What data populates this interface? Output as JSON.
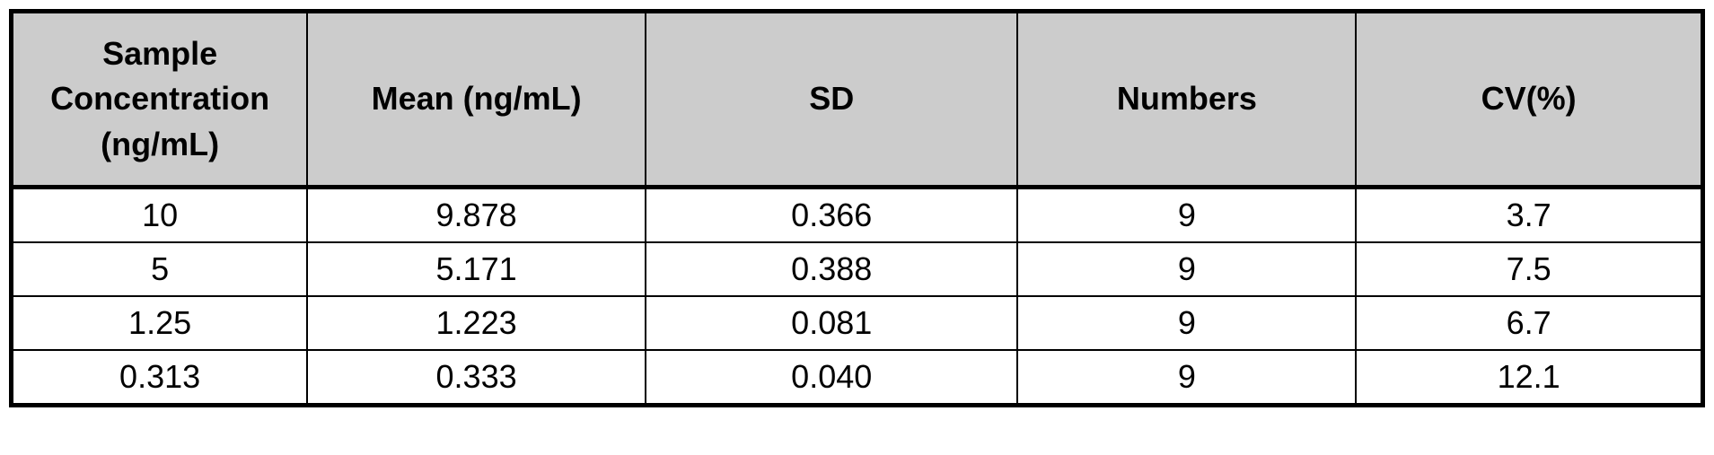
{
  "table": {
    "type": "table",
    "columns": [
      {
        "label": "Sample Concentration (ng/mL)",
        "width_pct": 17.5
      },
      {
        "label": "Mean (ng/mL)",
        "width_pct": 20
      },
      {
        "label": "SD",
        "width_pct": 22
      },
      {
        "label": "Numbers",
        "width_pct": 20
      },
      {
        "label": "CV(%)",
        "width_pct": 20.5
      }
    ],
    "rows": [
      [
        "10",
        "9.878",
        "0.366",
        "9",
        "3.7"
      ],
      [
        "5",
        "5.171",
        "0.388",
        "9",
        "7.5"
      ],
      [
        "1.25",
        "1.223",
        "0.081",
        "9",
        "6.7"
      ],
      [
        "0.313",
        "0.333",
        "0.040",
        "9",
        "12.1"
      ]
    ],
    "styling": {
      "header_background": "#cccccc",
      "cell_background": "#ffffff",
      "border_color": "#000000",
      "outer_border_width": 5,
      "inner_border_width": 2,
      "header_fontsize": 36,
      "cell_fontsize": 36,
      "font_family": "Arial",
      "header_fontweight": "bold",
      "text_color": "#000000",
      "text_align": "center",
      "header_row_height": 180,
      "data_row_height": 60
    }
  }
}
